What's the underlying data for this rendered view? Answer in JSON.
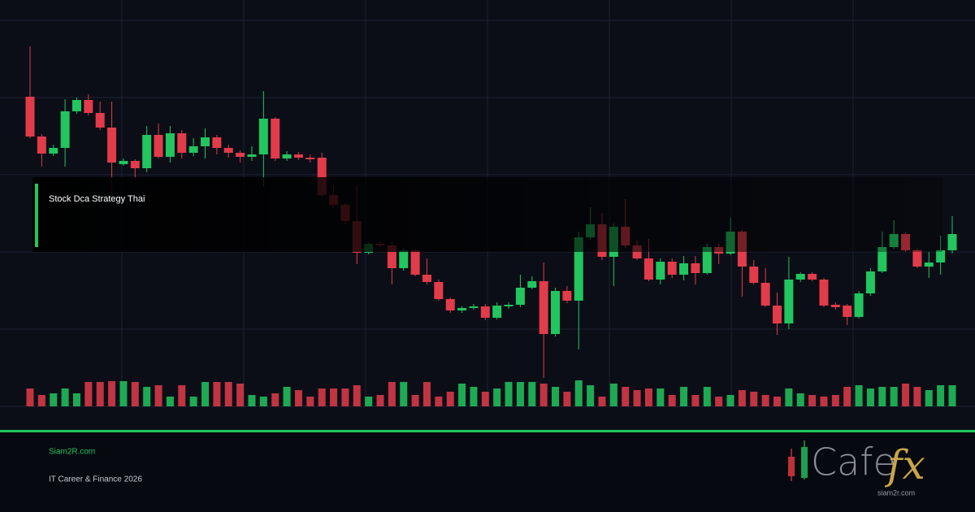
{
  "chart_data": {
    "type": "candlestick",
    "open": [
      511,
      462,
      441,
      448,
      493,
      507,
      491,
      473,
      428,
      432,
      423,
      464,
      437,
      466,
      442,
      450,
      461,
      448,
      442,
      437,
      440,
      484,
      435,
      440,
      436,
      436,
      390,
      378,
      358,
      319,
      330,
      328,
      300,
      322,
      292,
      283,
      262,
      248,
      251,
      253,
      239,
      253,
      255,
      276,
      284,
      219,
      272,
      260,
      338,
      354,
      314,
      351,
      328,
      312,
      286,
      308,
      292,
      306,
      294,
      326,
      318,
      345,
      302,
      282,
      254,
      232,
      286,
      293,
      286,
      255,
      254,
      240,
      269,
      296,
      326,
      342,
      322,
      302,
      307,
      322
    ],
    "high": [
      573,
      465,
      452,
      508,
      510,
      514,
      505,
      505,
      435,
      434,
      475,
      478,
      475,
      470,
      460,
      472,
      464,
      452,
      445,
      450,
      518,
      486,
      444,
      443,
      440,
      442,
      402,
      380,
      402,
      332,
      333,
      332,
      325,
      324,
      312,
      286,
      264,
      253,
      256,
      256,
      258,
      258,
      292,
      290,
      307,
      276,
      278,
      345,
      375,
      368,
      355,
      385,
      334,
      336,
      312,
      312,
      315,
      315,
      330,
      330,
      362,
      347,
      310,
      300,
      270,
      314,
      295,
      295,
      288,
      258,
      256,
      272,
      300,
      345,
      359,
      344,
      324,
      320,
      340,
      364
    ],
    "low": [
      460,
      425,
      438,
      425,
      490,
      488,
      470,
      390,
      426,
      410,
      418,
      435,
      430,
      435,
      438,
      435,
      440,
      436,
      430,
      432,
      400,
      432,
      432,
      433,
      430,
      388,
      374,
      354,
      305,
      317,
      326,
      280,
      297,
      290,
      280,
      260,
      245,
      245,
      249,
      236,
      237,
      250,
      252,
      274,
      165,
      216,
      257,
      200,
      335,
      310,
      278,
      325,
      310,
      284,
      280,
      288,
      285,
      280,
      292,
      305,
      316,
      265,
      280,
      252,
      218,
      225,
      283,
      284,
      252,
      249,
      230,
      238,
      266,
      294,
      324,
      320,
      300,
      288,
      292,
      318
    ],
    "close": [
      462,
      441,
      448,
      493,
      507,
      491,
      473,
      430,
      432,
      423,
      464,
      437,
      466,
      442,
      450,
      461,
      448,
      442,
      437,
      440,
      484,
      435,
      440,
      436,
      434,
      390,
      378,
      358,
      319,
      330,
      328,
      300,
      322,
      292,
      283,
      262,
      248,
      251,
      253,
      239,
      254,
      255,
      276,
      284,
      219,
      272,
      260,
      338,
      354,
      314,
      351,
      328,
      312,
      286,
      308,
      292,
      306,
      294,
      326,
      318,
      345,
      302,
      282,
      254,
      232,
      286,
      293,
      286,
      254,
      252,
      240,
      269,
      296,
      326,
      342,
      322,
      302,
      307,
      322,
      342
    ],
    "volume": [
      22,
      14,
      16,
      22,
      16,
      30,
      30,
      31,
      31,
      30,
      24,
      26,
      12,
      26,
      12,
      30,
      30,
      30,
      28,
      14,
      12,
      16,
      24,
      20,
      12,
      22,
      22,
      22,
      26,
      12,
      14,
      30,
      30,
      14,
      30,
      12,
      18,
      28,
      24,
      18,
      22,
      30,
      30,
      30,
      28,
      24,
      18,
      32,
      26,
      12,
      28,
      24,
      20,
      22,
      22,
      14,
      24,
      14,
      24,
      12,
      14,
      20,
      18,
      14,
      12,
      22,
      16,
      14,
      12,
      14,
      24,
      26,
      22,
      24,
      24,
      28,
      24,
      20,
      26,
      26
    ],
    "ylim": [
      130,
      630
    ],
    "y2lim": [
      0,
      160
    ],
    "up_color": "#22c55e",
    "down_color": "#e23b4a",
    "grid": true
  },
  "overlay": {
    "title": "Stock Dca Strategy Thai"
  },
  "footer": {
    "site": "Siam2R.com",
    "tagline": "IT Career & Finance 2026"
  },
  "logo": {
    "word": "Cafe",
    "accent": "fx",
    "url": "siam2r.com"
  }
}
